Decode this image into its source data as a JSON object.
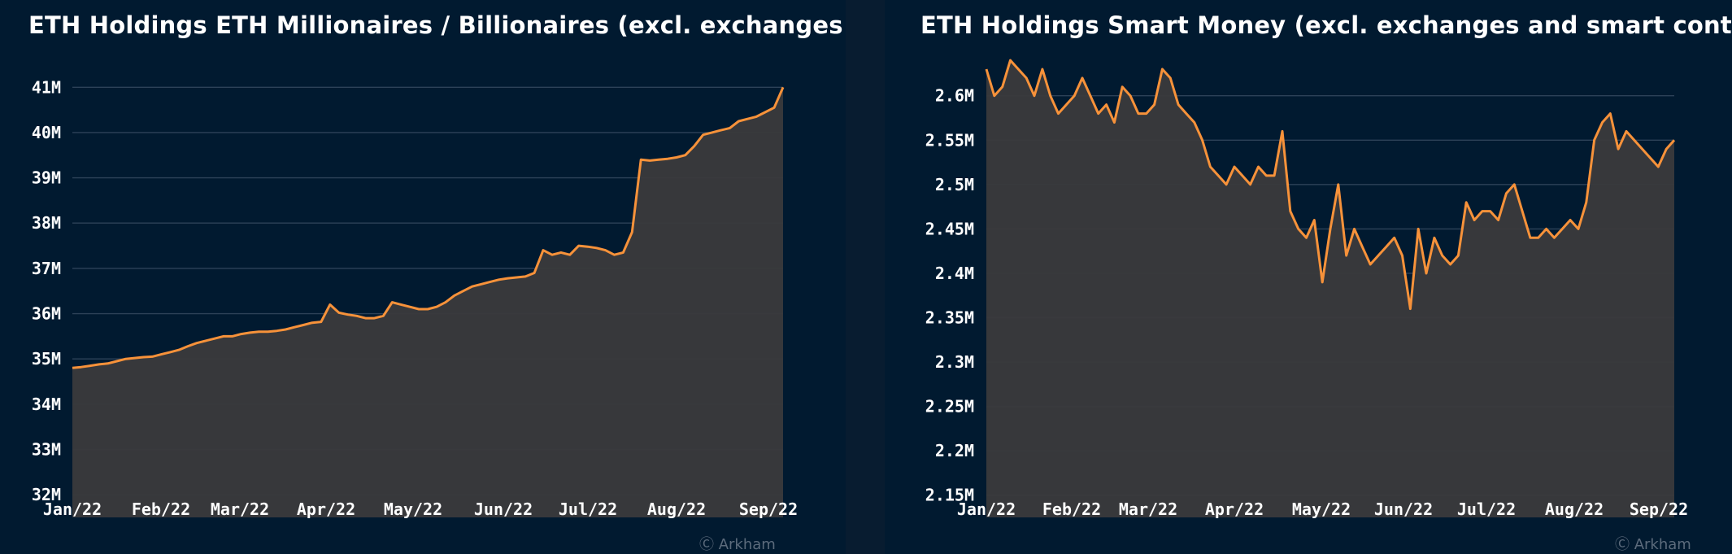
{
  "charts": [
    {
      "title": "ETH Holdings ETH Millionaires / Billionaires (excl. exchanges and ...",
      "watermark": "Ⓒ Arkham",
      "colors": {
        "line": "#f7923a",
        "area": "#3a3a3c",
        "grid": "#2d4258"
      },
      "chart_data": {
        "type": "area",
        "title": "ETH Holdings ETH Millionaires / Billionaires (excl. exchanges and ...",
        "xlabel": "",
        "ylabel": "",
        "x_ticks": [
          "Jan/22",
          "Feb/22",
          "Mar/22",
          "Apr/22",
          "May/22",
          "Jun/22",
          "Jul/22",
          "Aug/22",
          "Sep/22"
        ],
        "y_ticks": [
          "32M",
          "33M",
          "34M",
          "35M",
          "36M",
          "37M",
          "38M",
          "39M",
          "40M",
          "41M"
        ],
        "ylim": [
          31.5,
          41.4
        ],
        "grid": true,
        "series": [
          {
            "values": [
              34.8,
              34.82,
              34.85,
              34.88,
              34.9,
              34.95,
              35.0,
              35.02,
              35.04,
              35.05,
              35.1,
              35.15,
              35.2,
              35.28,
              35.35,
              35.4,
              35.45,
              35.5,
              35.5,
              35.55,
              35.58,
              35.6,
              35.6,
              35.62,
              35.65,
              35.7,
              35.75,
              35.8,
              35.82,
              36.2,
              36.02,
              35.98,
              35.95,
              35.9,
              35.9,
              35.95,
              36.25,
              36.2,
              36.15,
              36.1,
              36.1,
              36.15,
              36.25,
              36.4,
              36.5,
              36.6,
              36.65,
              36.7,
              36.75,
              36.78,
              36.8,
              36.82,
              36.9,
              37.4,
              37.3,
              37.35,
              37.3,
              37.5,
              37.48,
              37.45,
              37.4,
              37.3,
              37.35,
              37.8,
              39.4,
              39.38,
              39.4,
              39.42,
              39.45,
              39.5,
              39.7,
              39.95,
              40.0,
              40.05,
              40.1,
              40.25,
              40.3,
              40.35,
              40.45,
              40.55,
              41.0
            ]
          }
        ]
      }
    },
    {
      "title": "ETH Holdings Smart Money (excl. exchanges and smart contracts)",
      "watermark": "Ⓒ Arkham",
      "colors": {
        "line": "#f7923a",
        "area": "#3a3a3c",
        "grid": "#2d4258"
      },
      "chart_data": {
        "type": "area",
        "title": "ETH Holdings Smart Money (excl. exchanges and smart contracts)",
        "xlabel": "",
        "ylabel": "",
        "x_ticks": [
          "Jan/22",
          "Feb/22",
          "Mar/22",
          "Apr/22",
          "May/22",
          "Jun/22",
          "Jul/22",
          "Aug/22",
          "Sep/22"
        ],
        "y_ticks": [
          "2.15M",
          "2.2M",
          "2.25M",
          "2.3M",
          "2.35M",
          "2.4M",
          "2.45M",
          "2.5M",
          "2.55M",
          "2.6M"
        ],
        "ylim": [
          2.125,
          2.63
        ],
        "grid": true,
        "series": [
          {
            "values": [
              2.63,
              2.6,
              2.61,
              2.64,
              2.63,
              2.62,
              2.6,
              2.63,
              2.6,
              2.58,
              2.59,
              2.6,
              2.62,
              2.6,
              2.58,
              2.59,
              2.57,
              2.61,
              2.6,
              2.58,
              2.58,
              2.59,
              2.63,
              2.62,
              2.59,
              2.58,
              2.57,
              2.55,
              2.52,
              2.51,
              2.5,
              2.52,
              2.51,
              2.5,
              2.52,
              2.51,
              2.51,
              2.56,
              2.47,
              2.45,
              2.44,
              2.46,
              2.39,
              2.45,
              2.5,
              2.42,
              2.45,
              2.43,
              2.41,
              2.42,
              2.43,
              2.44,
              2.42,
              2.36,
              2.45,
              2.4,
              2.44,
              2.42,
              2.41,
              2.42,
              2.48,
              2.46,
              2.47,
              2.47,
              2.46,
              2.49,
              2.5,
              2.47,
              2.44,
              2.44,
              2.45,
              2.44,
              2.45,
              2.46,
              2.45,
              2.48,
              2.55,
              2.57,
              2.58,
              2.54,
              2.56,
              2.55,
              2.54,
              2.53,
              2.52,
              2.54,
              2.55
            ]
          }
        ]
      }
    }
  ]
}
